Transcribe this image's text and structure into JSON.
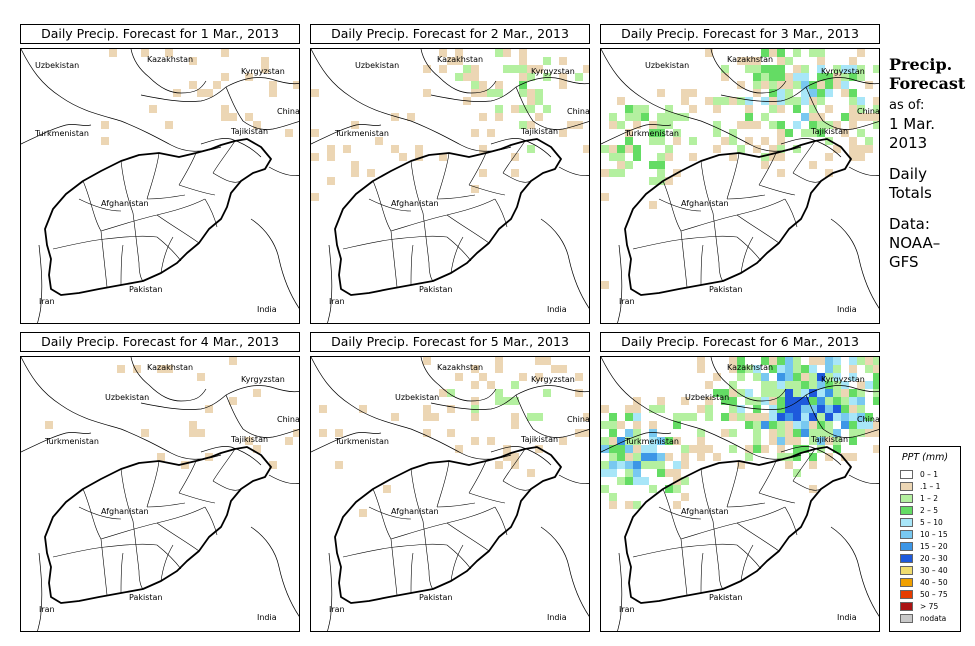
{
  "panels": [
    {
      "title": "Daily Precip. Forecast for  1 Mar., 2013",
      "intensity": 0.1
    },
    {
      "title": "Daily Precip. Forecast for  2 Mar., 2013",
      "intensity": 0.3
    },
    {
      "title": "Daily Precip. Forecast for  3 Mar., 2013",
      "intensity": 0.7
    },
    {
      "title": "Daily Precip. Forecast for  4 Mar., 2013",
      "intensity": 0.1
    },
    {
      "title": "Daily Precip. Forecast for  5 Mar., 2013",
      "intensity": 0.25
    },
    {
      "title": "Daily Precip. Forecast for  6 Mar., 2013",
      "intensity": 1.0
    }
  ],
  "countries": {
    "kazakhstan": "Kazakhstan",
    "uzbekistan": "Uzbekistan",
    "kyrgyzstan": "Kyrgyzstan",
    "china": "China",
    "turkmenistan": "Turkmenistan",
    "tajikistan": "Tajikistan",
    "afghanistan": "Afghanistan",
    "iran": "Iran",
    "pakistan": "Pakistan",
    "india": "India"
  },
  "sidebar": {
    "title_line1": "Precip.",
    "title_line2": "Forecast",
    "asof": "as of:",
    "date_line1": "1 Mar.",
    "date_line2": "2013",
    "daily": "Daily",
    "totals": "Totals",
    "data": "Data:",
    "source1": "NOAA–",
    "source2": "GFS"
  },
  "legend": {
    "title": "PPT (mm)",
    "items": [
      {
        "label": "0 – 1",
        "color": "#ffffff"
      },
      {
        "label": ".1 – 1",
        "color": "#ecd6b4"
      },
      {
        "label": "1 – 2",
        "color": "#b4f0a0"
      },
      {
        "label": "2 – 5",
        "color": "#64dc64"
      },
      {
        "label": "5 – 10",
        "color": "#a8e6f8"
      },
      {
        "label": "10 – 15",
        "color": "#78c8f0"
      },
      {
        "label": "15 – 20",
        "color": "#3c96e6"
      },
      {
        "label": "20 – 30",
        "color": "#1e5adc"
      },
      {
        "label": "30 – 40",
        "color": "#f0dc6e"
      },
      {
        "label": "40 – 50",
        "color": "#f0a000"
      },
      {
        "label": "50 – 75",
        "color": "#e63c00"
      },
      {
        "label": "> 75",
        "color": "#aa1414"
      },
      {
        "label": "nodata",
        "color": "#c8c8c8"
      }
    ]
  }
}
